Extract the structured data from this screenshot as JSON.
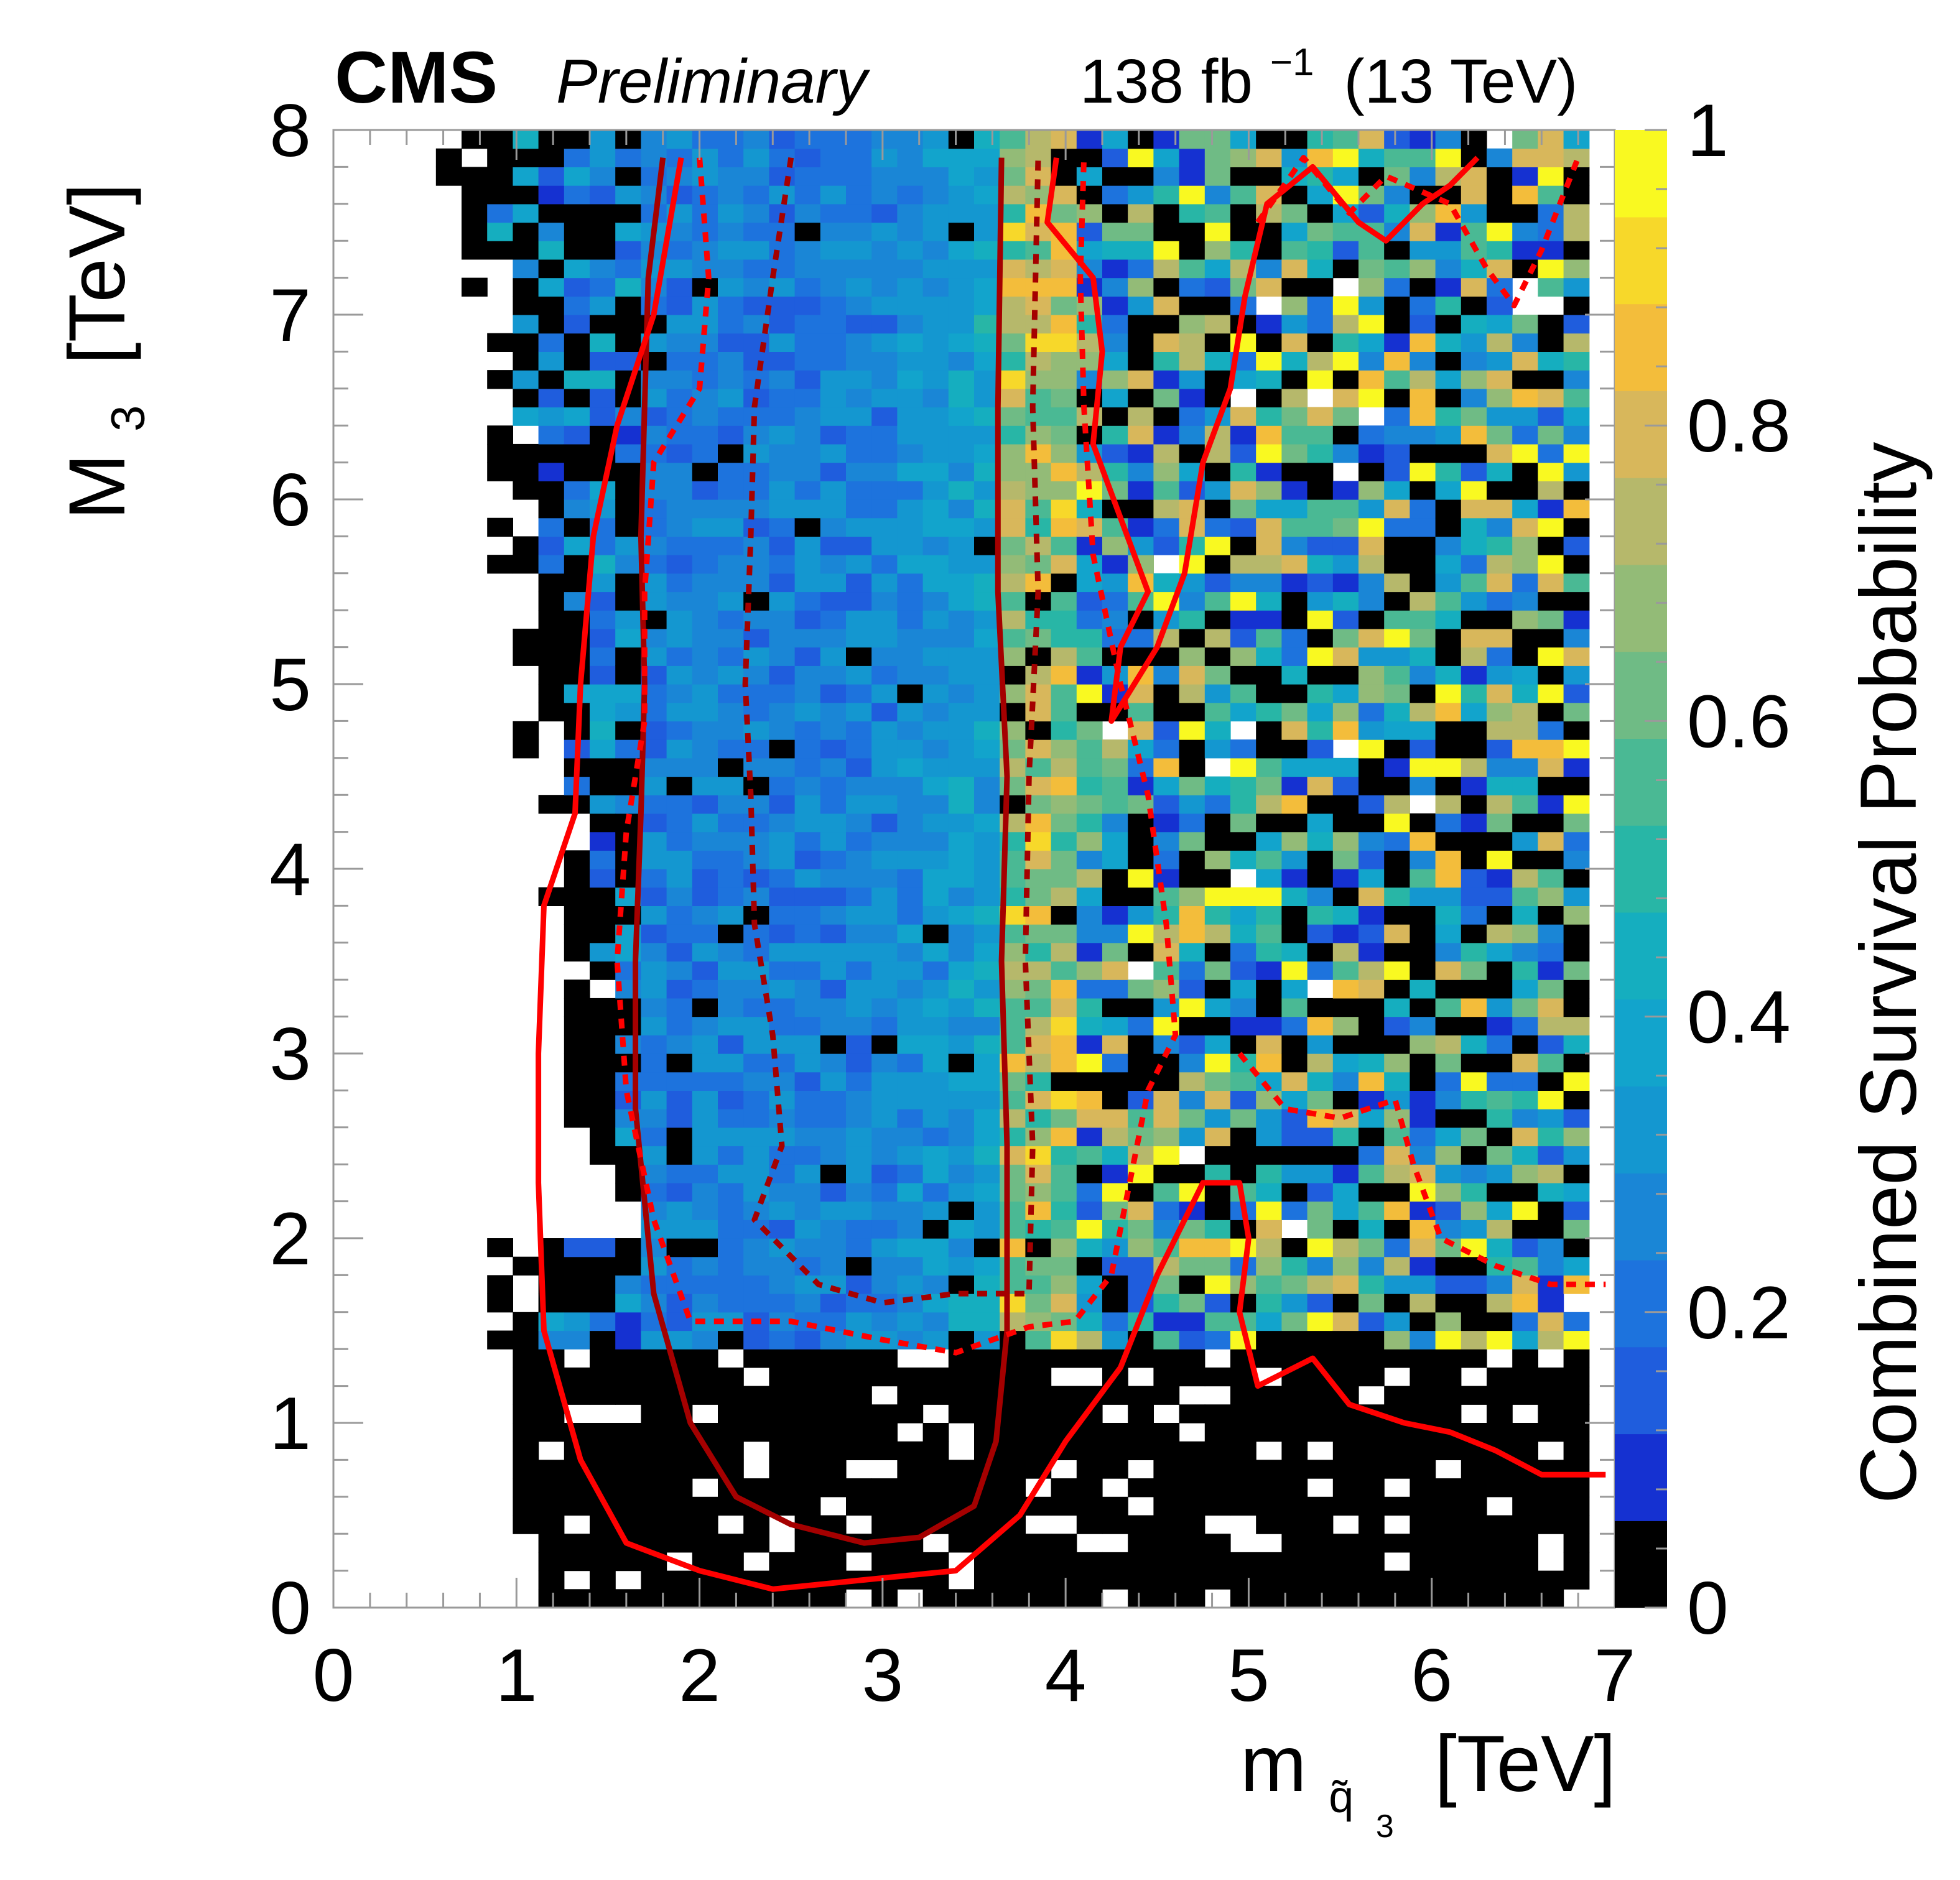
{
  "header": {
    "experiment": "CMS",
    "status": "Preliminary",
    "lumi_value": "138 fb",
    "lumi_exp": "−1",
    "energy": "(13 TeV)"
  },
  "axes": {
    "x": {
      "main": "m",
      "sub": "q̃",
      "subsub": "3",
      "unit": "[TeV]"
    },
    "y": {
      "main": "M",
      "sub": "3",
      "unit": "[TeV]"
    },
    "z": {
      "label": "Combined Survival Probability"
    }
  },
  "colors": {
    "no_data": "#ffffff",
    "zero": "#000000",
    "contour_bright": "#ff0000",
    "contour_dark": "#a50000",
    "palette": [
      "#1531d1",
      "#1f5ddd",
      "#1d73dd",
      "#1a86d6",
      "#1497d0",
      "#12a4cc",
      "#15aebf",
      "#28b6a6",
      "#4ab994",
      "#6fbb85",
      "#93bb77",
      "#b6b86b",
      "#d8b75b",
      "#f3bd3b",
      "#f7d82a",
      "#f9f921"
    ]
  },
  "chart_data": {
    "type": "heatmap",
    "title": "",
    "xlabel": "m_q̃3 [TeV]",
    "ylabel": "M3 [TeV]",
    "zlabel": "Combined Survival Probability",
    "xlim": [
      0,
      7
    ],
    "ylim": [
      0,
      8
    ],
    "zlim": [
      0,
      1
    ],
    "x_ticks": [
      "0",
      "1",
      "2",
      "3",
      "4",
      "5",
      "6",
      "7"
    ],
    "y_ticks": [
      "0",
      "1",
      "2",
      "3",
      "4",
      "5",
      "6",
      "7",
      "8"
    ],
    "z_ticks": [
      "0",
      "0.2",
      "0.4",
      "0.6",
      "0.8",
      "1"
    ],
    "grid": false,
    "binning": {
      "nx": 50,
      "ny": 80,
      "bin_width_x": 0.14,
      "bin_width_y": 0.1
    },
    "z_regions_description": [
      {
        "x_range": [
          1.8,
          3.7
        ],
        "y_range": [
          1.5,
          7.9
        ],
        "z_range": [
          0.12,
          0.3
        ]
      },
      {
        "x_range": [
          3.7,
          4.1
        ],
        "y_range": [
          1.5,
          7.9
        ],
        "z_range": [
          0.5,
          0.85
        ]
      },
      {
        "x_range": [
          4.1,
          7.0
        ],
        "y_range": [
          1.3,
          7.9
        ],
        "z_range": [
          0.0,
          1.0
        ]
      },
      {
        "x_range": [
          1.0,
          6.9
        ],
        "y_range": [
          0.0,
          1.4
        ],
        "z_range": [
          0.0,
          0.0
        ]
      }
    ],
    "contours": [
      {
        "style": "solid",
        "color": "dark red",
        "points": [
          [
            1.8,
            7.85
          ],
          [
            1.72,
            7.2
          ],
          [
            1.7,
            6.5
          ],
          [
            1.68,
            5.8
          ],
          [
            1.7,
            5.0
          ],
          [
            1.68,
            4.3
          ],
          [
            1.65,
            3.5
          ],
          [
            1.65,
            2.7
          ],
          [
            1.75,
            1.7
          ],
          [
            1.95,
            1.0
          ],
          [
            2.2,
            0.6
          ],
          [
            2.5,
            0.45
          ],
          [
            2.9,
            0.35
          ],
          [
            3.2,
            0.38
          ],
          [
            3.5,
            0.55
          ],
          [
            3.62,
            0.9
          ],
          [
            3.68,
            1.5
          ],
          [
            3.68,
            2.5
          ],
          [
            3.65,
            3.5
          ],
          [
            3.68,
            4.5
          ],
          [
            3.63,
            5.5
          ],
          [
            3.63,
            6.5
          ],
          [
            3.65,
            7.85
          ]
        ]
      },
      {
        "style": "solid",
        "color": "red",
        "points": [
          [
            1.9,
            7.85
          ],
          [
            1.75,
            7.0
          ],
          [
            1.55,
            6.4
          ],
          [
            1.42,
            5.8
          ],
          [
            1.35,
            5.0
          ],
          [
            1.32,
            4.3
          ],
          [
            1.15,
            3.8
          ],
          [
            1.12,
            3.0
          ],
          [
            1.12,
            2.3
          ],
          [
            1.15,
            1.5
          ],
          [
            1.35,
            0.8
          ],
          [
            1.6,
            0.35
          ],
          [
            2.0,
            0.2
          ],
          [
            2.4,
            0.1
          ],
          [
            2.9,
            0.15
          ],
          [
            3.4,
            0.2
          ],
          [
            3.75,
            0.5
          ],
          [
            4.0,
            0.9
          ],
          [
            4.3,
            1.3
          ],
          [
            4.5,
            1.8
          ],
          [
            4.75,
            2.3
          ],
          [
            4.95,
            2.3
          ],
          [
            5.0,
            2.0
          ],
          [
            4.95,
            1.6
          ],
          [
            5.05,
            1.2
          ],
          [
            5.35,
            1.35
          ],
          [
            5.55,
            1.1
          ],
          [
            5.85,
            1.0
          ],
          [
            6.1,
            0.95
          ],
          [
            6.35,
            0.85
          ],
          [
            6.6,
            0.72
          ],
          [
            6.95,
            0.72
          ]
        ]
      },
      {
        "style": "solid",
        "color": "red",
        "points": [
          [
            3.95,
            7.85
          ],
          [
            3.9,
            7.5
          ],
          [
            4.15,
            7.2
          ],
          [
            4.2,
            6.8
          ],
          [
            4.15,
            6.3
          ],
          [
            4.3,
            5.9
          ],
          [
            4.45,
            5.5
          ],
          [
            4.3,
            5.2
          ],
          [
            4.25,
            4.8
          ],
          [
            4.5,
            5.2
          ],
          [
            4.65,
            5.6
          ],
          [
            4.75,
            6.2
          ],
          [
            4.9,
            6.6
          ],
          [
            4.98,
            7.1
          ],
          [
            5.1,
            7.6
          ],
          [
            5.35,
            7.8
          ],
          [
            5.6,
            7.5
          ],
          [
            5.75,
            7.4
          ],
          [
            5.95,
            7.6
          ],
          [
            6.1,
            7.7
          ],
          [
            6.25,
            7.85
          ]
        ]
      },
      {
        "style": "dashed",
        "color": "red",
        "points": [
          [
            2.0,
            7.85
          ],
          [
            2.05,
            7.2
          ],
          [
            2.0,
            6.6
          ],
          [
            1.75,
            6.2
          ],
          [
            1.7,
            5.5
          ],
          [
            1.7,
            4.8
          ],
          [
            1.6,
            4.2
          ],
          [
            1.55,
            3.5
          ],
          [
            1.6,
            2.8
          ],
          [
            1.75,
            2.1
          ],
          [
            1.95,
            1.55
          ],
          [
            2.5,
            1.55
          ],
          [
            3.0,
            1.45
          ],
          [
            3.4,
            1.38
          ],
          [
            3.8,
            1.52
          ],
          [
            4.05,
            1.55
          ],
          [
            4.25,
            1.8
          ],
          [
            4.35,
            2.3
          ],
          [
            4.45,
            2.8
          ],
          [
            4.6,
            3.1
          ],
          [
            4.55,
            3.7
          ],
          [
            4.45,
            4.4
          ],
          [
            4.3,
            5.0
          ],
          [
            4.15,
            5.7
          ],
          [
            4.1,
            6.5
          ],
          [
            4.08,
            7.2
          ],
          [
            4.1,
            7.85
          ]
        ]
      },
      {
        "style": "dashed",
        "color": "dark red",
        "points": [
          [
            2.5,
            7.85
          ],
          [
            2.4,
            7.2
          ],
          [
            2.3,
            6.5
          ],
          [
            2.28,
            5.8
          ],
          [
            2.25,
            5.0
          ],
          [
            2.28,
            4.4
          ],
          [
            2.3,
            3.7
          ],
          [
            2.4,
            3.1
          ],
          [
            2.45,
            2.5
          ],
          [
            2.3,
            2.1
          ],
          [
            2.65,
            1.75
          ],
          [
            3.0,
            1.65
          ],
          [
            3.4,
            1.7
          ],
          [
            3.8,
            1.7
          ],
          [
            3.82,
            2.5
          ],
          [
            3.78,
            3.5
          ],
          [
            3.8,
            4.5
          ],
          [
            3.85,
            5.5
          ],
          [
            3.82,
            6.5
          ],
          [
            3.85,
            7.85
          ]
        ]
      },
      {
        "style": "dashed",
        "color": "red",
        "points": [
          [
            4.95,
            3.0
          ],
          [
            5.2,
            2.7
          ],
          [
            5.5,
            2.65
          ],
          [
            5.8,
            2.75
          ],
          [
            5.9,
            2.4
          ],
          [
            6.05,
            2.0
          ],
          [
            6.35,
            1.85
          ],
          [
            6.65,
            1.75
          ],
          [
            6.95,
            1.75
          ]
        ]
      },
      {
        "style": "dashed",
        "color": "red",
        "points": [
          [
            5.05,
            7.5
          ],
          [
            5.3,
            7.85
          ],
          [
            5.55,
            7.55
          ],
          [
            5.75,
            7.75
          ],
          [
            6.1,
            7.6
          ],
          [
            6.3,
            7.25
          ],
          [
            6.45,
            7.05
          ],
          [
            6.6,
            7.35
          ],
          [
            6.8,
            7.85
          ]
        ]
      }
    ]
  }
}
